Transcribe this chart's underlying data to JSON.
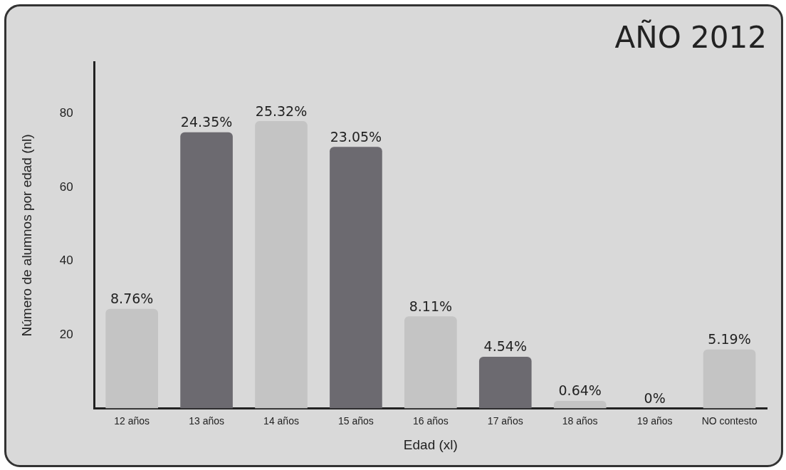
{
  "chart_data": {
    "type": "bar",
    "title": "AÑO 2012",
    "xlabel": "Edad (xl)",
    "ylabel": "Número de alumnos por edad (nl)",
    "categories": [
      "12 años",
      "13 años",
      "14 años",
      "15 años",
      "16 años",
      "17 años",
      "18 años",
      "19 años",
      "NO contesto"
    ],
    "values": [
      27,
      75,
      78,
      71,
      25,
      14,
      2,
      0,
      16
    ],
    "colors": [
      "#c4c4c4",
      "#6c6a70",
      "#c4c4c4",
      "#6c6a70",
      "#c4c4c4",
      "#6c6a70",
      "#c4c4c4",
      "#c4c4c4",
      "#c4c4c4"
    ],
    "annotations": [
      {
        "text": "8.76%",
        "x": "12 años",
        "y": 27
      },
      {
        "text": "24.35%",
        "x": "13 años",
        "y": 75
      },
      {
        "text": "25.32%",
        "x": "14 años",
        "y": 78
      },
      {
        "text": "23.05%",
        "x": "15 años",
        "y": 71
      },
      {
        "text": "8.11%",
        "x": "16 años",
        "y": 25
      },
      {
        "text": "4.54%",
        "x": "17 años",
        "y": 14
      },
      {
        "text": "0.64%",
        "x": "18 años",
        "y": 2
      },
      {
        "text": "0%",
        "x": "19 años",
        "y": 0
      },
      {
        "text": "5.19%",
        "x": "NO contesto",
        "y": 16
      }
    ],
    "ylim": [
      0,
      94
    ],
    "yticks": [
      20,
      40,
      60,
      80
    ],
    "grid": false,
    "legend": false
  }
}
